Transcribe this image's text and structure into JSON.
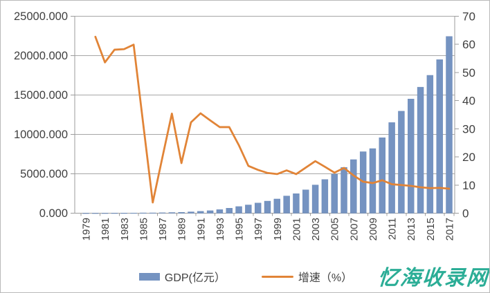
{
  "chart_data": {
    "type": "combo-bar-line",
    "title": "",
    "categories": [
      1979,
      1980,
      1981,
      1982,
      1983,
      1984,
      1985,
      1986,
      1987,
      1988,
      1989,
      1990,
      1991,
      1992,
      1993,
      1994,
      1995,
      1996,
      1997,
      1998,
      1999,
      2000,
      2001,
      2002,
      2003,
      2004,
      2005,
      2006,
      2007,
      2008,
      2009,
      2010,
      2011,
      2012,
      2013,
      2014,
      2015,
      2016,
      2017
    ],
    "x_tick_labels": [
      "1979",
      "1981",
      "1983",
      "1985",
      "1987",
      "1989",
      "1991",
      "1993",
      "1995",
      "1997",
      "1999",
      "2001",
      "2003",
      "2005",
      "2007",
      "2009",
      "2011",
      "2013",
      "2015",
      "2017"
    ],
    "series": [
      {
        "name": "GDP(亿元）",
        "type": "bar",
        "axis": "left",
        "color": "#7593C1",
        "values": [
          1.96,
          2.7,
          4.95,
          8.25,
          13.12,
          23.42,
          39.02,
          41.65,
          55.85,
          86.98,
          115.65,
          171.67,
          236.69,
          317.32,
          453.14,
          634.67,
          842.79,
          1050.04,
          1297.44,
          1534.83,
          1804.02,
          2187.45,
          2482.49,
          2969.52,
          3585.72,
          4282.14,
          4950.91,
          5813.56,
          6801.57,
          7806.54,
          8201.23,
          9581.51,
          11505.53,
          12950.08,
          14500.23,
          16001.82,
          17502.86,
          19492.6,
          22438.39
        ]
      },
      {
        "name": "增速（%）",
        "type": "line",
        "axis": "right",
        "color": "#E18437",
        "values": [
          null,
          62.7,
          53.6,
          58.1,
          58.3,
          59.9,
          31.8,
          3.8,
          19.7,
          35.4,
          17.8,
          32.3,
          35.5,
          33,
          30.6,
          30.6,
          24.2,
          16.8,
          15.4,
          14.3,
          13.9,
          15.2,
          13.9,
          16.2,
          18.5,
          16.5,
          14.4,
          16.1,
          13.4,
          11.2,
          10.7,
          11.7,
          10.3,
          10,
          9.7,
          9.2,
          8.9,
          9,
          8.7
        ]
      }
    ],
    "left_axis": {
      "min": 0,
      "max": 25000,
      "step": 5000,
      "tick_labels": [
        "0.000",
        "5000.000",
        "10000.000",
        "15000.000",
        "20000.000",
        "25000.000"
      ]
    },
    "right_axis": {
      "min": 0,
      "max": 70,
      "step": 10,
      "tick_values": [
        0,
        10,
        20,
        30,
        40,
        50,
        60,
        70
      ]
    },
    "gridlines": true,
    "legend_position": "bottom",
    "grid_color": "#A6A6A6",
    "axis_color": "#9B9B9B",
    "text_color": "#3F3F3F"
  },
  "legend": {
    "gdp_label": "GDP(亿元）",
    "growth_label": "增速（%）"
  },
  "watermark": {
    "text": "忆海收录网",
    "color": "#2BAD96"
  }
}
